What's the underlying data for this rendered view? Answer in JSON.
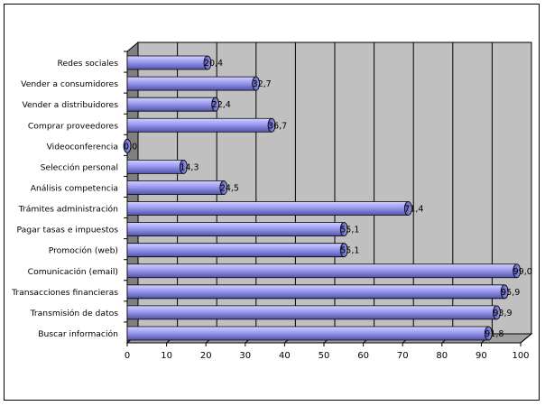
{
  "chart_data": {
    "type": "bar",
    "orientation": "horizontal",
    "title": "",
    "xlabel": "",
    "ylabel": "",
    "xlim": [
      0,
      100
    ],
    "x_ticks": [
      0,
      10,
      20,
      30,
      40,
      50,
      60,
      70,
      80,
      90,
      100
    ],
    "grid": true,
    "legend": "none",
    "style": "3d-cylinder",
    "colors": {
      "bar": "#9a9af0",
      "bar_dark": "#5252a8",
      "bar_light": "#d2d2ff",
      "plot_wall": "#c0c0c0",
      "side_wall": "#808080",
      "gridline": "#000000"
    },
    "categories": [
      "Redes sociales",
      "Vender a consumidores",
      "Vender a distribuidores",
      "Comprar proveedores",
      "Videoconferencia",
      "Selección personal",
      "Análisis competencia",
      "Trámites administración",
      "Pagar tasas e impuestos",
      "Promoción (web)",
      "Comunicación (email)",
      "Transacciones financieras",
      "Transmisión de datos",
      "Buscar información"
    ],
    "values": [
      20.4,
      32.7,
      22.4,
      36.7,
      0.0,
      14.3,
      24.5,
      71.4,
      55.1,
      55.1,
      99.0,
      95.9,
      93.9,
      91.8
    ],
    "data_labels": [
      "20,4",
      "32,7",
      "22,4",
      "36,7",
      "0,0",
      "14,3",
      "24,5",
      "71,4",
      "55,1",
      "55,1",
      "99,0",
      "95,9",
      "93,9",
      "91,8"
    ]
  }
}
